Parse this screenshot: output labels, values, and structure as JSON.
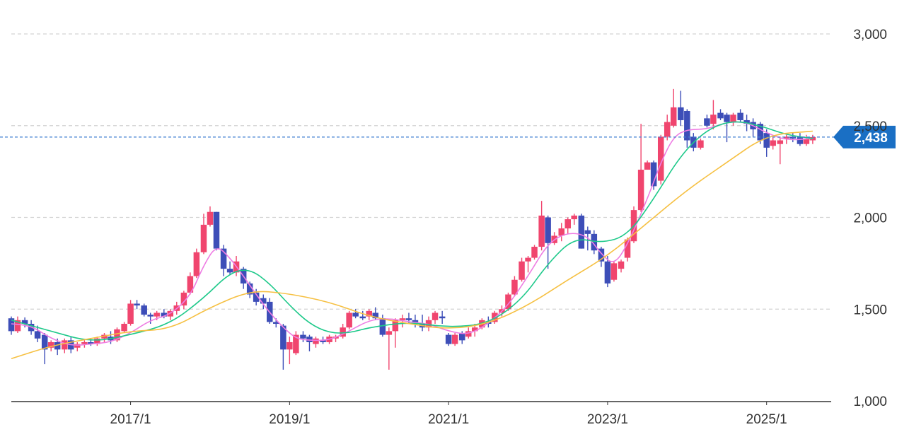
{
  "chart_data": {
    "type": "candlestick",
    "title": "",
    "xlabel": "",
    "ylabel": "",
    "ylim": [
      1000,
      3000
    ],
    "y_ticks": [
      "1,000",
      "1,500",
      "2,000",
      "2,500",
      "3,000"
    ],
    "y_tick_values": [
      1000,
      1500,
      2000,
      2500,
      3000
    ],
    "x_ticks": [
      "2017/1",
      "2019/1",
      "2021/1",
      "2023/1",
      "2025/1"
    ],
    "x_tick_values": [
      2017.0,
      2019.0,
      2021.0,
      2023.0,
      2025.0
    ],
    "x_range": [
      2015.5,
      2025.75
    ],
    "grid": true,
    "current_price": 2438,
    "current_price_label": "2,438",
    "colors": {
      "up": "#f0456e",
      "down": "#3d4eb8",
      "ma_short": "#ee7de3",
      "ma_mid": "#1ec98a",
      "ma_long": "#f6c042",
      "price_line": "#3f7fd1",
      "badge": "#1a6fc4",
      "grid": "#d3d3d3",
      "axis": "#333333"
    },
    "candles": [
      {
        "t": 2015.5,
        "o": 1450,
        "h": 1460,
        "l": 1360,
        "c": 1380
      },
      {
        "t": 2015.58,
        "o": 1380,
        "h": 1460,
        "l": 1370,
        "c": 1440
      },
      {
        "t": 2015.67,
        "o": 1440,
        "h": 1455,
        "l": 1400,
        "c": 1420
      },
      {
        "t": 2015.75,
        "o": 1420,
        "h": 1440,
        "l": 1360,
        "c": 1380
      },
      {
        "t": 2015.83,
        "o": 1380,
        "h": 1410,
        "l": 1320,
        "c": 1340
      },
      {
        "t": 2015.92,
        "o": 1360,
        "h": 1370,
        "l": 1200,
        "c": 1280
      },
      {
        "t": 2016.0,
        "o": 1290,
        "h": 1330,
        "l": 1270,
        "c": 1320
      },
      {
        "t": 2016.08,
        "o": 1320,
        "h": 1340,
        "l": 1250,
        "c": 1280
      },
      {
        "t": 2016.17,
        "o": 1280,
        "h": 1340,
        "l": 1260,
        "c": 1330
      },
      {
        "t": 2016.25,
        "o": 1330,
        "h": 1350,
        "l": 1260,
        "c": 1280
      },
      {
        "t": 2016.33,
        "o": 1290,
        "h": 1320,
        "l": 1270,
        "c": 1310
      },
      {
        "t": 2016.42,
        "o": 1310,
        "h": 1330,
        "l": 1290,
        "c": 1320
      },
      {
        "t": 2016.5,
        "o": 1320,
        "h": 1340,
        "l": 1300,
        "c": 1310
      },
      {
        "t": 2016.58,
        "o": 1310,
        "h": 1350,
        "l": 1300,
        "c": 1340
      },
      {
        "t": 2016.67,
        "o": 1340,
        "h": 1370,
        "l": 1320,
        "c": 1360
      },
      {
        "t": 2016.75,
        "o": 1350,
        "h": 1380,
        "l": 1310,
        "c": 1330
      },
      {
        "t": 2016.83,
        "o": 1330,
        "h": 1400,
        "l": 1320,
        "c": 1390
      },
      {
        "t": 2016.92,
        "o": 1380,
        "h": 1430,
        "l": 1370,
        "c": 1420
      },
      {
        "t": 2017.0,
        "o": 1420,
        "h": 1550,
        "l": 1410,
        "c": 1530
      },
      {
        "t": 2017.08,
        "o": 1530,
        "h": 1550,
        "l": 1500,
        "c": 1520
      },
      {
        "t": 2017.17,
        "o": 1520,
        "h": 1530,
        "l": 1460,
        "c": 1470
      },
      {
        "t": 2017.25,
        "o": 1470,
        "h": 1480,
        "l": 1420,
        "c": 1460
      },
      {
        "t": 2017.33,
        "o": 1460,
        "h": 1490,
        "l": 1440,
        "c": 1480
      },
      {
        "t": 2017.42,
        "o": 1480,
        "h": 1500,
        "l": 1450,
        "c": 1460
      },
      {
        "t": 2017.5,
        "o": 1460,
        "h": 1500,
        "l": 1440,
        "c": 1490
      },
      {
        "t": 2017.58,
        "o": 1490,
        "h": 1540,
        "l": 1470,
        "c": 1520
      },
      {
        "t": 2017.67,
        "o": 1520,
        "h": 1600,
        "l": 1500,
        "c": 1590
      },
      {
        "t": 2017.75,
        "o": 1590,
        "h": 1700,
        "l": 1580,
        "c": 1680
      },
      {
        "t": 2017.83,
        "o": 1680,
        "h": 1830,
        "l": 1670,
        "c": 1810
      },
      {
        "t": 2017.92,
        "o": 1810,
        "h": 2020,
        "l": 1800,
        "c": 1960
      },
      {
        "t": 2018.0,
        "o": 1960,
        "h": 2060,
        "l": 1950,
        "c": 2030
      },
      {
        "t": 2018.08,
        "o": 2030,
        "h": 2030,
        "l": 1820,
        "c": 1830
      },
      {
        "t": 2018.17,
        "o": 1830,
        "h": 1850,
        "l": 1680,
        "c": 1720
      },
      {
        "t": 2018.25,
        "o": 1720,
        "h": 1760,
        "l": 1690,
        "c": 1700
      },
      {
        "t": 2018.33,
        "o": 1700,
        "h": 1790,
        "l": 1680,
        "c": 1760
      },
      {
        "t": 2018.42,
        "o": 1720,
        "h": 1730,
        "l": 1610,
        "c": 1640
      },
      {
        "t": 2018.5,
        "o": 1640,
        "h": 1650,
        "l": 1560,
        "c": 1580
      },
      {
        "t": 2018.58,
        "o": 1590,
        "h": 1610,
        "l": 1520,
        "c": 1540
      },
      {
        "t": 2018.67,
        "o": 1560,
        "h": 1580,
        "l": 1500,
        "c": 1530
      },
      {
        "t": 2018.75,
        "o": 1540,
        "h": 1560,
        "l": 1420,
        "c": 1430
      },
      {
        "t": 2018.83,
        "o": 1430,
        "h": 1450,
        "l": 1400,
        "c": 1420
      },
      {
        "t": 2018.92,
        "o": 1410,
        "h": 1420,
        "l": 1170,
        "c": 1280
      },
      {
        "t": 2019.0,
        "o": 1280,
        "h": 1350,
        "l": 1200,
        "c": 1320
      },
      {
        "t": 2019.08,
        "o": 1260,
        "h": 1380,
        "l": 1250,
        "c": 1360
      },
      {
        "t": 2019.17,
        "o": 1360,
        "h": 1380,
        "l": 1320,
        "c": 1340
      },
      {
        "t": 2019.25,
        "o": 1350,
        "h": 1360,
        "l": 1270,
        "c": 1320
      },
      {
        "t": 2019.33,
        "o": 1310,
        "h": 1350,
        "l": 1290,
        "c": 1340
      },
      {
        "t": 2019.42,
        "o": 1330,
        "h": 1350,
        "l": 1310,
        "c": 1320
      },
      {
        "t": 2019.5,
        "o": 1320,
        "h": 1360,
        "l": 1310,
        "c": 1350
      },
      {
        "t": 2019.58,
        "o": 1340,
        "h": 1360,
        "l": 1320,
        "c": 1350
      },
      {
        "t": 2019.67,
        "o": 1350,
        "h": 1420,
        "l": 1340,
        "c": 1400
      },
      {
        "t": 2019.75,
        "o": 1400,
        "h": 1490,
        "l": 1390,
        "c": 1480
      },
      {
        "t": 2019.83,
        "o": 1480,
        "h": 1500,
        "l": 1450,
        "c": 1460
      },
      {
        "t": 2019.92,
        "o": 1460,
        "h": 1490,
        "l": 1440,
        "c": 1450
      },
      {
        "t": 2020.0,
        "o": 1460,
        "h": 1500,
        "l": 1440,
        "c": 1490
      },
      {
        "t": 2020.08,
        "o": 1480,
        "h": 1510,
        "l": 1440,
        "c": 1450
      },
      {
        "t": 2020.17,
        "o": 1450,
        "h": 1470,
        "l": 1350,
        "c": 1360
      },
      {
        "t": 2020.25,
        "o": 1360,
        "h": 1400,
        "l": 1170,
        "c": 1380
      },
      {
        "t": 2020.33,
        "o": 1380,
        "h": 1450,
        "l": 1290,
        "c": 1440
      },
      {
        "t": 2020.42,
        "o": 1440,
        "h": 1470,
        "l": 1400,
        "c": 1450
      },
      {
        "t": 2020.5,
        "o": 1450,
        "h": 1480,
        "l": 1420,
        "c": 1440
      },
      {
        "t": 2020.58,
        "o": 1440,
        "h": 1470,
        "l": 1400,
        "c": 1420
      },
      {
        "t": 2020.67,
        "o": 1420,
        "h": 1470,
        "l": 1380,
        "c": 1400
      },
      {
        "t": 2020.75,
        "o": 1400,
        "h": 1460,
        "l": 1380,
        "c": 1440
      },
      {
        "t": 2020.83,
        "o": 1440,
        "h": 1490,
        "l": 1420,
        "c": 1480
      },
      {
        "t": 2020.92,
        "o": 1460,
        "h": 1490,
        "l": 1420,
        "c": 1450
      },
      {
        "t": 2021.0,
        "o": 1360,
        "h": 1370,
        "l": 1300,
        "c": 1310
      },
      {
        "t": 2021.08,
        "o": 1310,
        "h": 1370,
        "l": 1300,
        "c": 1360
      },
      {
        "t": 2021.17,
        "o": 1370,
        "h": 1380,
        "l": 1310,
        "c": 1330
      },
      {
        "t": 2021.25,
        "o": 1350,
        "h": 1400,
        "l": 1340,
        "c": 1380
      },
      {
        "t": 2021.33,
        "o": 1380,
        "h": 1420,
        "l": 1350,
        "c": 1400
      },
      {
        "t": 2021.42,
        "o": 1400,
        "h": 1450,
        "l": 1390,
        "c": 1440
      },
      {
        "t": 2021.5,
        "o": 1430,
        "h": 1460,
        "l": 1400,
        "c": 1420
      },
      {
        "t": 2021.58,
        "o": 1430,
        "h": 1490,
        "l": 1420,
        "c": 1480
      },
      {
        "t": 2021.67,
        "o": 1480,
        "h": 1520,
        "l": 1460,
        "c": 1500
      },
      {
        "t": 2021.75,
        "o": 1500,
        "h": 1590,
        "l": 1490,
        "c": 1580
      },
      {
        "t": 2021.83,
        "o": 1580,
        "h": 1680,
        "l": 1570,
        "c": 1660
      },
      {
        "t": 2021.92,
        "o": 1660,
        "h": 1780,
        "l": 1650,
        "c": 1760
      },
      {
        "t": 2022.0,
        "o": 1760,
        "h": 1790,
        "l": 1700,
        "c": 1780
      },
      {
        "t": 2022.08,
        "o": 1780,
        "h": 1850,
        "l": 1770,
        "c": 1840
      },
      {
        "t": 2022.17,
        "o": 1840,
        "h": 2090,
        "l": 1820,
        "c": 2010
      },
      {
        "t": 2022.25,
        "o": 2000,
        "h": 2010,
        "l": 1720,
        "c": 1860
      },
      {
        "t": 2022.33,
        "o": 1860,
        "h": 1920,
        "l": 1850,
        "c": 1900
      },
      {
        "t": 2022.42,
        "o": 1900,
        "h": 1970,
        "l": 1870,
        "c": 1940
      },
      {
        "t": 2022.5,
        "o": 1940,
        "h": 2000,
        "l": 1910,
        "c": 1990
      },
      {
        "t": 2022.58,
        "o": 1990,
        "h": 2020,
        "l": 1960,
        "c": 2010
      },
      {
        "t": 2022.67,
        "o": 2010,
        "h": 2020,
        "l": 1830,
        "c": 1830
      },
      {
        "t": 2022.75,
        "o": 1930,
        "h": 1950,
        "l": 1820,
        "c": 1910
      },
      {
        "t": 2022.83,
        "o": 1910,
        "h": 1930,
        "l": 1800,
        "c": 1820
      },
      {
        "t": 2022.92,
        "o": 1830,
        "h": 1840,
        "l": 1730,
        "c": 1760
      },
      {
        "t": 2023.0,
        "o": 1760,
        "h": 1790,
        "l": 1620,
        "c": 1640
      },
      {
        "t": 2023.08,
        "o": 1660,
        "h": 1760,
        "l": 1650,
        "c": 1750
      },
      {
        "t": 2023.17,
        "o": 1720,
        "h": 1770,
        "l": 1700,
        "c": 1760
      },
      {
        "t": 2023.25,
        "o": 1780,
        "h": 1890,
        "l": 1760,
        "c": 1880
      },
      {
        "t": 2023.33,
        "o": 1870,
        "h": 2060,
        "l": 1860,
        "c": 2040
      },
      {
        "t": 2023.42,
        "o": 2040,
        "h": 2510,
        "l": 2030,
        "c": 2260
      },
      {
        "t": 2023.5,
        "o": 2260,
        "h": 2310,
        "l": 2260,
        "c": 2300
      },
      {
        "t": 2023.58,
        "o": 2300,
        "h": 2310,
        "l": 2150,
        "c": 2170
      },
      {
        "t": 2023.67,
        "o": 2200,
        "h": 2450,
        "l": 2180,
        "c": 2440
      },
      {
        "t": 2023.75,
        "o": 2440,
        "h": 2560,
        "l": 2420,
        "c": 2520
      },
      {
        "t": 2023.83,
        "o": 2500,
        "h": 2700,
        "l": 2490,
        "c": 2600
      },
      {
        "t": 2023.92,
        "o": 2600,
        "h": 2690,
        "l": 2500,
        "c": 2530
      },
      {
        "t": 2024.0,
        "o": 2580,
        "h": 2590,
        "l": 2380,
        "c": 2420
      },
      {
        "t": 2024.08,
        "o": 2440,
        "h": 2460,
        "l": 2360,
        "c": 2380
      },
      {
        "t": 2024.17,
        "o": 2380,
        "h": 2430,
        "l": 2370,
        "c": 2420
      },
      {
        "t": 2024.25,
        "o": 2540,
        "h": 2560,
        "l": 2490,
        "c": 2500
      },
      {
        "t": 2024.33,
        "o": 2510,
        "h": 2640,
        "l": 2480,
        "c": 2560
      },
      {
        "t": 2024.42,
        "o": 2570,
        "h": 2590,
        "l": 2530,
        "c": 2540
      },
      {
        "t": 2024.5,
        "o": 2560,
        "h": 2570,
        "l": 2410,
        "c": 2520
      },
      {
        "t": 2024.58,
        "o": 2520,
        "h": 2570,
        "l": 2500,
        "c": 2560
      },
      {
        "t": 2024.67,
        "o": 2570,
        "h": 2590,
        "l": 2520,
        "c": 2530
      },
      {
        "t": 2024.75,
        "o": 2530,
        "h": 2560,
        "l": 2470,
        "c": 2510
      },
      {
        "t": 2024.83,
        "o": 2520,
        "h": 2540,
        "l": 2440,
        "c": 2480
      },
      {
        "t": 2024.92,
        "o": 2510,
        "h": 2520,
        "l": 2400,
        "c": 2420
      },
      {
        "t": 2025.0,
        "o": 2460,
        "h": 2480,
        "l": 2330,
        "c": 2380
      },
      {
        "t": 2025.08,
        "o": 2390,
        "h": 2440,
        "l": 2370,
        "c": 2420
      },
      {
        "t": 2025.17,
        "o": 2400,
        "h": 2440,
        "l": 2290,
        "c": 2420
      },
      {
        "t": 2025.25,
        "o": 2430,
        "h": 2450,
        "l": 2400,
        "c": 2440
      },
      {
        "t": 2025.33,
        "o": 2440,
        "h": 2460,
        "l": 2410,
        "c": 2430
      },
      {
        "t": 2025.42,
        "o": 2440,
        "h": 2460,
        "l": 2390,
        "c": 2400
      },
      {
        "t": 2025.5,
        "o": 2400,
        "h": 2450,
        "l": 2390,
        "c": 2430
      },
      {
        "t": 2025.58,
        "o": 2420,
        "h": 2450,
        "l": 2400,
        "c": 2438
      }
    ],
    "series": [
      {
        "style": "ma_short",
        "x": [
          2015.5,
          2015.75,
          2016.0,
          2016.25,
          2016.5,
          2016.75,
          2017.0,
          2017.25,
          2017.5,
          2017.75,
          2017.92,
          2018.08,
          2018.25,
          2018.42,
          2018.58,
          2018.75,
          2018.92,
          2019.08,
          2019.25,
          2019.5,
          2019.75,
          2020.0,
          2020.25,
          2020.5,
          2020.75,
          2021.0,
          2021.25,
          2021.5,
          2021.75,
          2022.0,
          2022.25,
          2022.5,
          2022.75,
          2022.92,
          2023.08,
          2023.25,
          2023.5,
          2023.67,
          2023.83,
          2024.0,
          2024.25,
          2024.5,
          2024.75,
          2025.0,
          2025.25,
          2025.58
        ],
        "y": [
          1420,
          1410,
          1340,
          1300,
          1310,
          1320,
          1370,
          1440,
          1470,
          1570,
          1740,
          1850,
          1780,
          1680,
          1580,
          1480,
          1400,
          1340,
          1330,
          1330,
          1380,
          1440,
          1450,
          1430,
          1420,
          1380,
          1360,
          1420,
          1520,
          1680,
          1860,
          1920,
          1900,
          1800,
          1740,
          1850,
          2100,
          2300,
          2440,
          2480,
          2480,
          2520,
          2520,
          2460,
          2420,
          2430
        ]
      },
      {
        "style": "ma_mid",
        "x": [
          2015.5,
          2016.0,
          2016.5,
          2017.0,
          2017.5,
          2017.92,
          2018.25,
          2018.5,
          2018.75,
          2019.0,
          2019.25,
          2019.5,
          2019.75,
          2020.0,
          2020.5,
          2021.0,
          2021.5,
          2021.92,
          2022.25,
          2022.58,
          2022.92,
          2023.25,
          2023.58,
          2023.92,
          2024.25,
          2024.58,
          2024.92,
          2025.25,
          2025.58
        ],
        "y": [
          1440,
          1380,
          1320,
          1360,
          1420,
          1560,
          1700,
          1720,
          1640,
          1520,
          1420,
          1370,
          1370,
          1400,
          1430,
          1400,
          1420,
          1550,
          1750,
          1890,
          1860,
          1900,
          2100,
          2340,
          2480,
          2530,
          2500,
          2450,
          2430
        ]
      },
      {
        "style": "ma_long",
        "x": [
          2015.5,
          2016.0,
          2016.5,
          2017.0,
          2017.5,
          2018.0,
          2018.5,
          2018.92,
          2019.5,
          2020.0,
          2020.5,
          2021.0,
          2021.5,
          2022.0,
          2022.5,
          2023.0,
          2023.5,
          2024.0,
          2024.5,
          2025.0,
          2025.58
        ],
        "y": [
          1230,
          1300,
          1340,
          1380,
          1390,
          1510,
          1600,
          1590,
          1540,
          1460,
          1420,
          1390,
          1420,
          1520,
          1660,
          1790,
          1970,
          2150,
          2300,
          2450,
          2470
        ]
      }
    ]
  }
}
